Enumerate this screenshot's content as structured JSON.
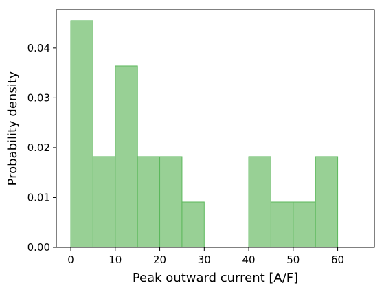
{
  "chart_data": {
    "type": "bar",
    "title": "",
    "xlabel": "Peak outward current [A/F]",
    "ylabel": "Probability density",
    "xlim": [
      -3.25,
      68.25
    ],
    "ylim": [
      0,
      0.0477
    ],
    "xticks": [
      0,
      10,
      20,
      30,
      40,
      50,
      60
    ],
    "xtick_labels": [
      "0",
      "10",
      "20",
      "30",
      "40",
      "50",
      "60"
    ],
    "yticks": [
      0,
      0.01,
      0.02,
      0.03,
      0.04
    ],
    "ytick_labels": [
      "0.00",
      "0.01",
      "0.02",
      "0.03",
      "0.04"
    ],
    "bin_edges": [
      0,
      5,
      10,
      15,
      20,
      25,
      30,
      35,
      40,
      45,
      50,
      55,
      60,
      65
    ],
    "values": [
      0.0455,
      0.0182,
      0.0364,
      0.0182,
      0.0182,
      0.0091,
      0,
      0,
      0.0182,
      0.0091,
      0.0091,
      0.0182,
      0
    ],
    "grid": false,
    "colors": {
      "fill": "#98d095",
      "edge": "#5cb85c"
    }
  }
}
